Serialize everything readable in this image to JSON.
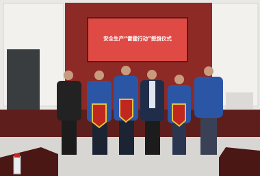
{
  "screen": {
    "title": "安全生产“雷霆行动”授旗仪式"
  }
}
